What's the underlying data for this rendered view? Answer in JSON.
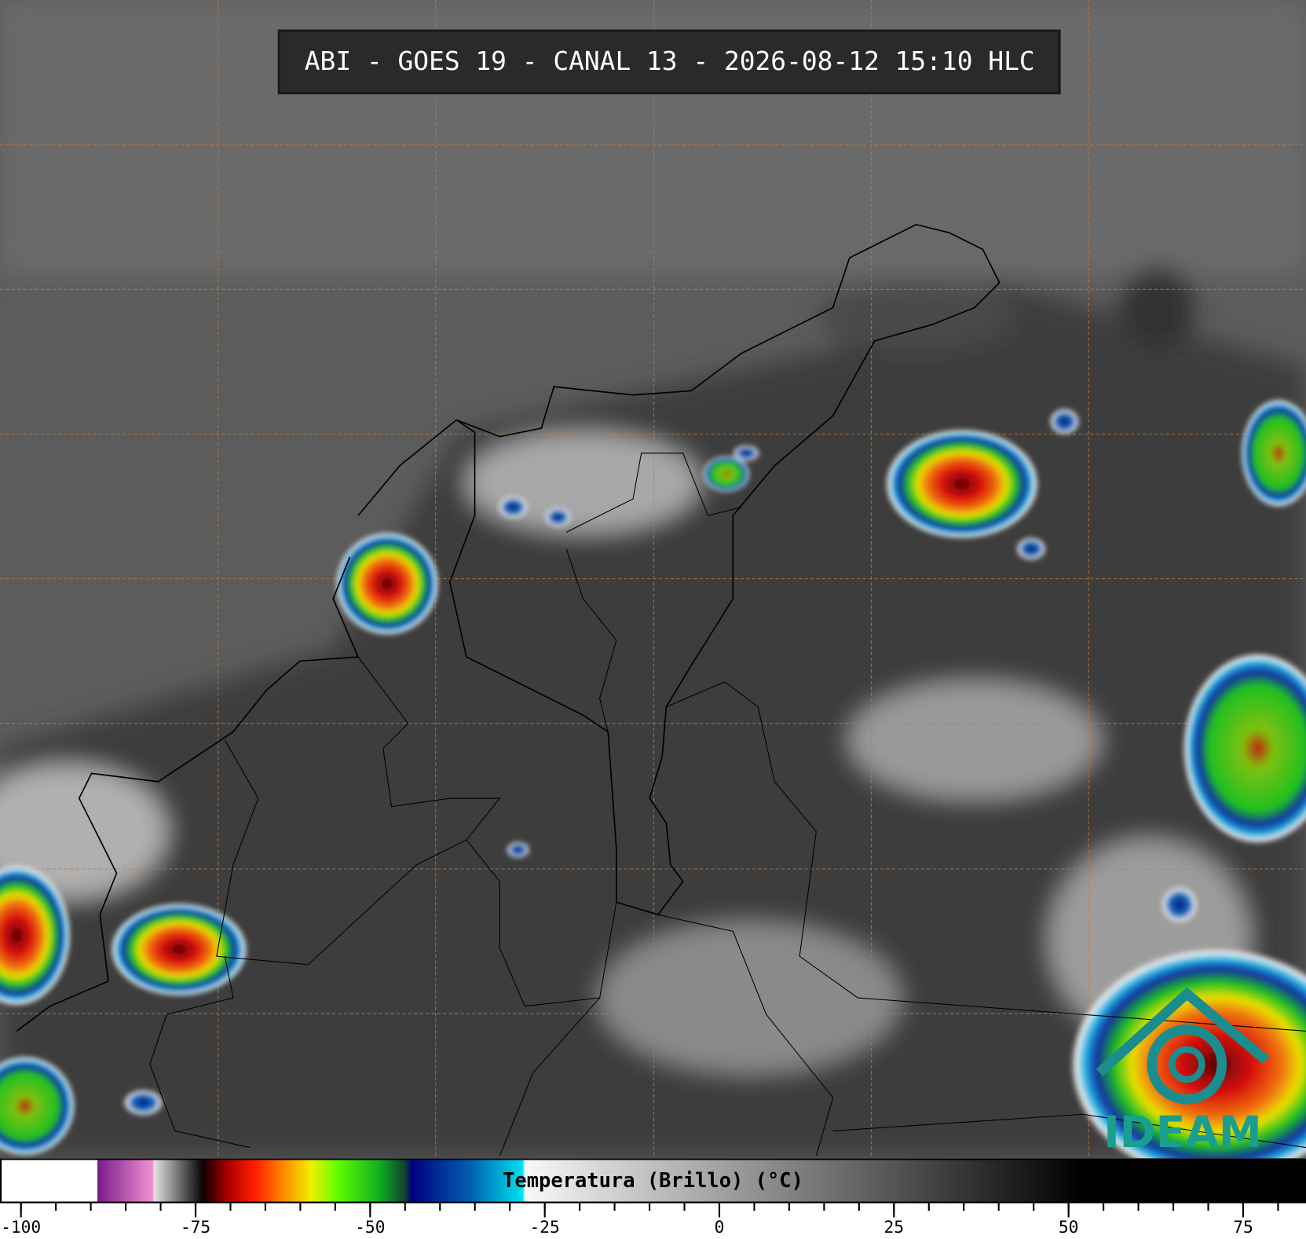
{
  "title": "ABI - GOES 19 - CANAL 13 - 2026-08-12 15:10 HLC",
  "colorbar": {
    "label": "Temperatura (Brillo) (°C)",
    "range": [
      -103,
      84
    ],
    "ticks": [
      -100,
      -75,
      -50,
      -25,
      0,
      25,
      50,
      75
    ],
    "minor_step": 5
  },
  "logo": "IDEAM"
}
